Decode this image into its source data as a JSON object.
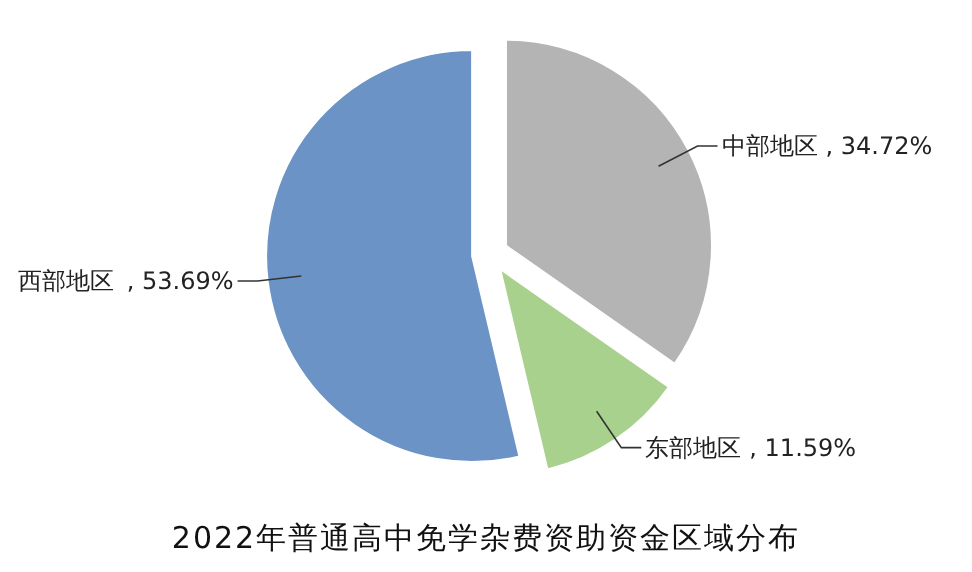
{
  "chart_data": {
    "type": "pie",
    "title": "2022年普通高中免学杂费资助资金区域分布",
    "categories": [
      "中部地区",
      "东部地区",
      "西部地区"
    ],
    "values": [
      34.72,
      11.59,
      53.69
    ],
    "colors": [
      "#b4b4b4",
      "#a9d18e",
      "#6b93c5"
    ],
    "value_labels": [
      ", 34.72%",
      ", 11.59%",
      ", 53.69%"
    ],
    "legend": false
  }
}
